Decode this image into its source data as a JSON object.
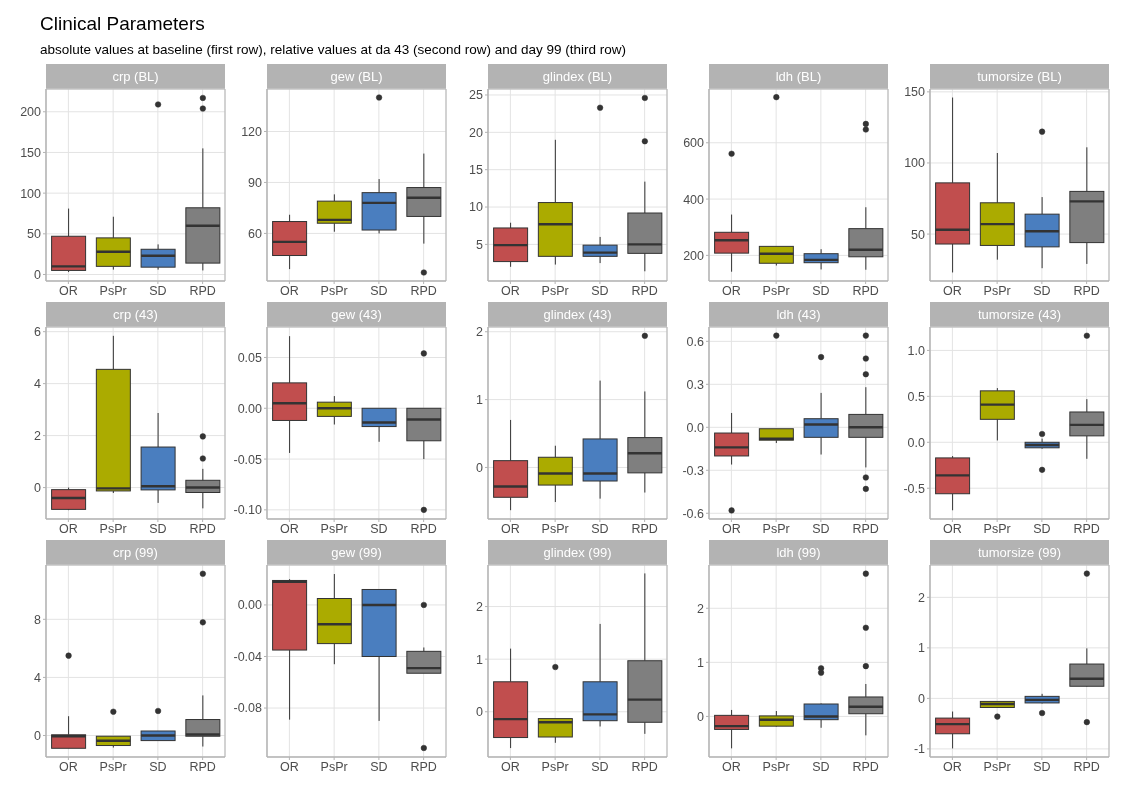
{
  "chart_data": [
    {
      "type": "other",
      "title": "Clinical Parameters",
      "subtitle": "absolute values at baseline (first row), relative values at da 43 (second row) and day 99 (third row)"
    },
    {
      "type": "box",
      "title": "crp (BL)",
      "categories": [
        "OR",
        "PsPr",
        "SD",
        "RPD"
      ],
      "colors": [
        "#c14e4e",
        "#abab00",
        "#4a7ebf",
        "#7f7f7f"
      ],
      "ylim": [
        -8,
        228
      ],
      "yticks": [
        0,
        50,
        100,
        150,
        200
      ],
      "grid": true,
      "boxes": [
        {
          "low": 3,
          "q1": 5,
          "median": 10,
          "q3": 47,
          "high": 81
        },
        {
          "low": 6,
          "q1": 10,
          "median": 28,
          "q3": 45,
          "high": 71
        },
        {
          "low": 6,
          "q1": 9,
          "median": 23,
          "q3": 31,
          "high": 37,
          "outliers": [
            209
          ]
        },
        {
          "low": 5,
          "q1": 14,
          "median": 60,
          "q3": 82,
          "high": 155,
          "outliers": [
            204,
            217
          ]
        }
      ]
    },
    {
      "type": "box",
      "title": "gew (BL)",
      "categories": [
        "OR",
        "PsPr",
        "SD",
        "RPD"
      ],
      "colors": [
        "#c14e4e",
        "#abab00",
        "#4a7ebf",
        "#7f7f7f"
      ],
      "ylim": [
        32,
        145
      ],
      "yticks": [
        60,
        90,
        120
      ],
      "grid": true,
      "boxes": [
        {
          "low": 39,
          "q1": 47,
          "median": 55,
          "q3": 67,
          "high": 71
        },
        {
          "low": 61,
          "q1": 66,
          "median": 68,
          "q3": 79,
          "high": 83
        },
        {
          "low": 60,
          "q1": 62,
          "median": 78,
          "q3": 84,
          "high": 92,
          "outliers": [
            140
          ]
        },
        {
          "low": 54,
          "q1": 70,
          "median": 81,
          "q3": 87,
          "high": 107,
          "outliers": [
            37
          ]
        }
      ]
    },
    {
      "type": "box",
      "title": "glindex (BL)",
      "categories": [
        "OR",
        "PsPr",
        "SD",
        "RPD"
      ],
      "colors": [
        "#c14e4e",
        "#abab00",
        "#4a7ebf",
        "#7f7f7f"
      ],
      "ylim": [
        0.1,
        25.8
      ],
      "yticks": [
        5,
        10,
        15,
        20,
        25
      ],
      "grid": true,
      "boxes": [
        {
          "low": 2,
          "q1": 2.7,
          "median": 4.9,
          "q3": 7.2,
          "high": 7.9
        },
        {
          "low": 2.3,
          "q1": 3.4,
          "median": 7.7,
          "q3": 10.6,
          "high": 19
        },
        {
          "low": 2.5,
          "q1": 3.4,
          "median": 3.9,
          "q3": 4.9,
          "high": 6,
          "outliers": [
            23.3
          ]
        },
        {
          "low": 1.4,
          "q1": 3.8,
          "median": 5,
          "q3": 9.2,
          "high": 13.4,
          "outliers": [
            18.8,
            24.6
          ]
        }
      ]
    },
    {
      "type": "box",
      "title": "ldh (BL)",
      "categories": [
        "OR",
        "PsPr",
        "SD",
        "RPD"
      ],
      "colors": [
        "#c14e4e",
        "#abab00",
        "#4a7ebf",
        "#7f7f7f"
      ],
      "ylim": [
        109,
        791
      ],
      "yticks": [
        200,
        400,
        600
      ],
      "grid": true,
      "boxes": [
        {
          "low": 142,
          "q1": 208,
          "median": 254,
          "q3": 282,
          "high": 345,
          "outliers": [
            561
          ]
        },
        {
          "low": 164,
          "q1": 172,
          "median": 206,
          "q3": 232,
          "high": 232,
          "outliers": [
            762
          ]
        },
        {
          "low": 150,
          "q1": 174,
          "median": 184,
          "q3": 206,
          "high": 222
        },
        {
          "low": 149,
          "q1": 195,
          "median": 220,
          "q3": 295,
          "high": 371,
          "outliers": [
            647,
            667
          ]
        }
      ]
    },
    {
      "type": "box",
      "title": "tumorsize (BL)",
      "categories": [
        "OR",
        "PsPr",
        "SD",
        "RPD"
      ],
      "colors": [
        "#c14e4e",
        "#abab00",
        "#4a7ebf",
        "#7f7f7f"
      ],
      "ylim": [
        17,
        152
      ],
      "yticks": [
        50,
        100,
        150
      ],
      "grid": true,
      "boxes": [
        {
          "low": 23,
          "q1": 43,
          "median": 53,
          "q3": 86,
          "high": 146
        },
        {
          "low": 32,
          "q1": 42,
          "median": 57,
          "q3": 72,
          "high": 107
        },
        {
          "low": 26,
          "q1": 41,
          "median": 52,
          "q3": 64,
          "high": 76,
          "outliers": [
            122
          ]
        },
        {
          "low": 29,
          "q1": 44,
          "median": 73,
          "q3": 80,
          "high": 111
        }
      ]
    },
    {
      "type": "box",
      "title": "crp (43)",
      "categories": [
        "OR",
        "PsPr",
        "SD",
        "RPD"
      ],
      "colors": [
        "#c14e4e",
        "#abab00",
        "#4a7ebf",
        "#7f7f7f"
      ],
      "ylim": [
        -1.21,
        6.18
      ],
      "yticks": [
        0,
        2,
        4,
        6
      ],
      "grid": true,
      "boxes": [
        {
          "low": -0.87,
          "q1": -0.84,
          "median": -0.4,
          "q3": -0.08,
          "high": 0
        },
        {
          "low": -0.21,
          "q1": -0.13,
          "median": -0.03,
          "q3": 4.55,
          "high": 5.84
        },
        {
          "low": -0.59,
          "q1": -0.09,
          "median": 0.05,
          "q3": 1.56,
          "high": 2.87
        },
        {
          "low": -0.8,
          "q1": -0.19,
          "median": 0,
          "q3": 0.28,
          "high": 0.72,
          "outliers": [
            1.12,
            1.97
          ]
        }
      ]
    },
    {
      "type": "box",
      "title": "gew (43)",
      "categories": [
        "OR",
        "PsPr",
        "SD",
        "RPD"
      ],
      "colors": [
        "#c14e4e",
        "#abab00",
        "#4a7ebf",
        "#7f7f7f"
      ],
      "ylim": [
        -0.109,
        0.08
      ],
      "yticks": [
        {
          "value": -0.1,
          "label": "-0.10"
        },
        -0.05,
        {
          "value": 0,
          "label": "0.00"
        },
        0.05
      ],
      "grid": true,
      "boxes": [
        {
          "low": -0.044,
          "q1": -0.012,
          "median": 0.005,
          "q3": 0.025,
          "high": 0.071
        },
        {
          "low": -0.016,
          "q1": -0.008,
          "median": 0,
          "q3": 0.006,
          "high": 0.012
        },
        {
          "low": -0.033,
          "q1": -0.018,
          "median": -0.014,
          "q3": 0,
          "high": 0
        },
        {
          "low": -0.05,
          "q1": -0.032,
          "median": -0.011,
          "q3": 0,
          "high": 0,
          "outliers": [
            0.054,
            -0.1
          ]
        }
      ]
    },
    {
      "type": "box",
      "title": "glindex (43)",
      "categories": [
        "OR",
        "PsPr",
        "SD",
        "RPD"
      ],
      "colors": [
        "#c14e4e",
        "#abab00",
        "#4a7ebf",
        "#7f7f7f"
      ],
      "ylim": [
        -0.76,
        2.07
      ],
      "yticks": [
        0,
        1,
        2
      ],
      "grid": true,
      "boxes": [
        {
          "low": -0.63,
          "q1": -0.44,
          "median": -0.28,
          "q3": 0.1,
          "high": 0.7
        },
        {
          "low": -0.51,
          "q1": -0.26,
          "median": -0.09,
          "q3": 0.15,
          "high": 0.32
        },
        {
          "low": -0.46,
          "q1": -0.2,
          "median": -0.09,
          "q3": 0.42,
          "high": 1.28
        },
        {
          "low": -0.37,
          "q1": -0.08,
          "median": 0.21,
          "q3": 0.44,
          "high": 1.12,
          "outliers": [
            1.94
          ]
        }
      ]
    },
    {
      "type": "box",
      "title": "ldh (43)",
      "categories": [
        "OR",
        "PsPr",
        "SD",
        "RPD"
      ],
      "colors": [
        "#c14e4e",
        "#abab00",
        "#4a7ebf",
        "#7f7f7f"
      ],
      "ylim": [
        -0.64,
        0.7
      ],
      "yticks": [
        -0.6,
        -0.3,
        {
          "value": 0,
          "label": "0.0"
        },
        0.3,
        0.6
      ],
      "grid": true,
      "boxes": [
        {
          "low": -0.26,
          "q1": -0.2,
          "median": -0.14,
          "q3": -0.04,
          "high": 0.1,
          "outliers": [
            -0.58
          ]
        },
        {
          "low": -0.11,
          "q1": -0.09,
          "median": -0.08,
          "q3": -0.01,
          "high": -0.01,
          "outliers": [
            0.64
          ]
        },
        {
          "low": -0.19,
          "q1": -0.07,
          "median": 0.02,
          "q3": 0.06,
          "high": 0.24,
          "outliers": [
            0.49
          ]
        },
        {
          "low": -0.28,
          "q1": -0.07,
          "median": 0,
          "q3": 0.09,
          "high": 0.28,
          "outliers": [
            -0.43,
            -0.35,
            0.37,
            0.48,
            0.64
          ]
        }
      ]
    },
    {
      "type": "box",
      "title": "tumorsize (43)",
      "categories": [
        "OR",
        "PsPr",
        "SD",
        "RPD"
      ],
      "colors": [
        "#c14e4e",
        "#abab00",
        "#4a7ebf",
        "#7f7f7f"
      ],
      "ylim": [
        -0.835,
        1.255
      ],
      "yticks": [
        -0.5,
        {
          "value": 0,
          "label": "0.0"
        },
        0.5,
        {
          "value": 1,
          "label": "1.0"
        }
      ],
      "grid": true,
      "boxes": [
        {
          "low": -0.74,
          "q1": -0.56,
          "median": -0.36,
          "q3": -0.17,
          "high": -0.15
        },
        {
          "low": 0.02,
          "q1": 0.25,
          "median": 0.41,
          "q3": 0.56,
          "high": 0.59
        },
        {
          "low": -0.07,
          "q1": -0.06,
          "median": -0.03,
          "q3": 0,
          "high": 0.04,
          "outliers": [
            -0.3,
            0.09
          ]
        },
        {
          "low": -0.18,
          "q1": 0.07,
          "median": 0.19,
          "q3": 0.33,
          "high": 0.47,
          "outliers": [
            1.16
          ]
        }
      ]
    },
    {
      "type": "box",
      "title": "crp (99)",
      "categories": [
        "OR",
        "PsPr",
        "SD",
        "RPD"
      ],
      "colors": [
        "#c14e4e",
        "#abab00",
        "#4a7ebf",
        "#7f7f7f"
      ],
      "ylim": [
        -1.48,
        11.74
      ],
      "yticks": [
        0,
        4,
        8
      ],
      "grid": true,
      "boxes": [
        {
          "low": -0.88,
          "q1": -0.88,
          "median": -0.05,
          "q3": 0.05,
          "high": 1.33,
          "outliers": [
            5.5
          ]
        },
        {
          "low": -0.83,
          "q1": -0.69,
          "median": -0.36,
          "q3": -0.05,
          "high": -0.05,
          "outliers": [
            1.64
          ]
        },
        {
          "low": -0.35,
          "q1": -0.35,
          "median": 0,
          "q3": 0.31,
          "high": 0.31,
          "outliers": [
            1.69
          ]
        },
        {
          "low": -0.76,
          "q1": -0.05,
          "median": 0.07,
          "q3": 1.1,
          "high": 2.76,
          "outliers": [
            7.79,
            11.14
          ]
        }
      ]
    },
    {
      "type": "box",
      "title": "gew (99)",
      "categories": [
        "OR",
        "PsPr",
        "SD",
        "RPD"
      ],
      "colors": [
        "#c14e4e",
        "#abab00",
        "#4a7ebf",
        "#7f7f7f"
      ],
      "ylim": [
        -0.118,
        0.031
      ],
      "yticks": [
        -0.08,
        -0.04,
        {
          "value": 0,
          "label": "0.00"
        }
      ],
      "grid": true,
      "boxes": [
        {
          "low": -0.089,
          "q1": -0.035,
          "median": 0.018,
          "q3": 0.019,
          "high": 0.02
        },
        {
          "low": -0.046,
          "q1": -0.03,
          "median": -0.015,
          "q3": 0.005,
          "high": 0.024
        },
        {
          "low": -0.09,
          "q1": -0.04,
          "median": 0,
          "q3": 0.012,
          "high": 0.012
        },
        {
          "low": -0.053,
          "q1": -0.053,
          "median": -0.049,
          "q3": -0.036,
          "high": -0.033,
          "outliers": [
            0,
            -0.111
          ]
        }
      ]
    },
    {
      "type": "box",
      "title": "glindex (99)",
      "categories": [
        "OR",
        "PsPr",
        "SD",
        "RPD"
      ],
      "colors": [
        "#c14e4e",
        "#abab00",
        "#4a7ebf",
        "#7f7f7f"
      ],
      "ylim": [
        -0.86,
        2.79
      ],
      "yticks": [
        0,
        1,
        2
      ],
      "grid": true,
      "boxes": [
        {
          "low": -0.69,
          "q1": -0.49,
          "median": -0.14,
          "q3": 0.57,
          "high": 1.2
        },
        {
          "low": -0.59,
          "q1": -0.48,
          "median": -0.2,
          "q3": -0.13,
          "high": -0.13,
          "outliers": [
            0.85
          ]
        },
        {
          "low": -0.28,
          "q1": -0.17,
          "median": -0.05,
          "q3": 0.57,
          "high": 1.67
        },
        {
          "low": -0.42,
          "q1": -0.2,
          "median": 0.23,
          "q3": 0.97,
          "high": 2.63
        }
      ]
    },
    {
      "type": "box",
      "title": "ldh (99)",
      "categories": [
        "OR",
        "PsPr",
        "SD",
        "RPD"
      ],
      "colors": [
        "#c14e4e",
        "#abab00",
        "#4a7ebf",
        "#7f7f7f"
      ],
      "ylim": [
        -0.75,
        2.8
      ],
      "yticks": [
        0,
        1,
        2
      ],
      "grid": true,
      "boxes": [
        {
          "low": -0.59,
          "q1": -0.24,
          "median": -0.18,
          "q3": 0.02,
          "high": 0.12
        },
        {
          "low": -0.19,
          "q1": -0.18,
          "median": -0.06,
          "q3": 0.01,
          "high": 0.1
        },
        {
          "low": -0.21,
          "q1": -0.06,
          "median": 0,
          "q3": 0.23,
          "high": 0.24,
          "outliers": [
            0.81,
            0.89
          ]
        },
        {
          "low": -0.35,
          "q1": 0.05,
          "median": 0.18,
          "q3": 0.36,
          "high": 0.6,
          "outliers": [
            0.93,
            1.64,
            2.64
          ]
        }
      ]
    },
    {
      "type": "box",
      "title": "tumorsize (99)",
      "categories": [
        "OR",
        "PsPr",
        "SD",
        "RPD"
      ],
      "colors": [
        "#c14e4e",
        "#abab00",
        "#4a7ebf",
        "#7f7f7f"
      ],
      "ylim": [
        -1.16,
        2.64
      ],
      "yticks": [
        -1,
        0,
        1,
        2
      ],
      "grid": true,
      "boxes": [
        {
          "low": -0.99,
          "q1": -0.7,
          "median": -0.51,
          "q3": -0.39,
          "high": -0.26
        },
        {
          "low": -0.18,
          "q1": -0.18,
          "median": -0.11,
          "q3": -0.06,
          "high": -0.06,
          "outliers": [
            -0.36
          ]
        },
        {
          "low": -0.1,
          "q1": -0.09,
          "median": -0.03,
          "q3": 0.04,
          "high": 0.09,
          "outliers": [
            -0.29
          ]
        },
        {
          "low": 0.23,
          "q1": 0.24,
          "median": 0.39,
          "q3": 0.68,
          "high": 0.99,
          "outliers": [
            -0.47,
            2.47
          ]
        }
      ]
    }
  ]
}
